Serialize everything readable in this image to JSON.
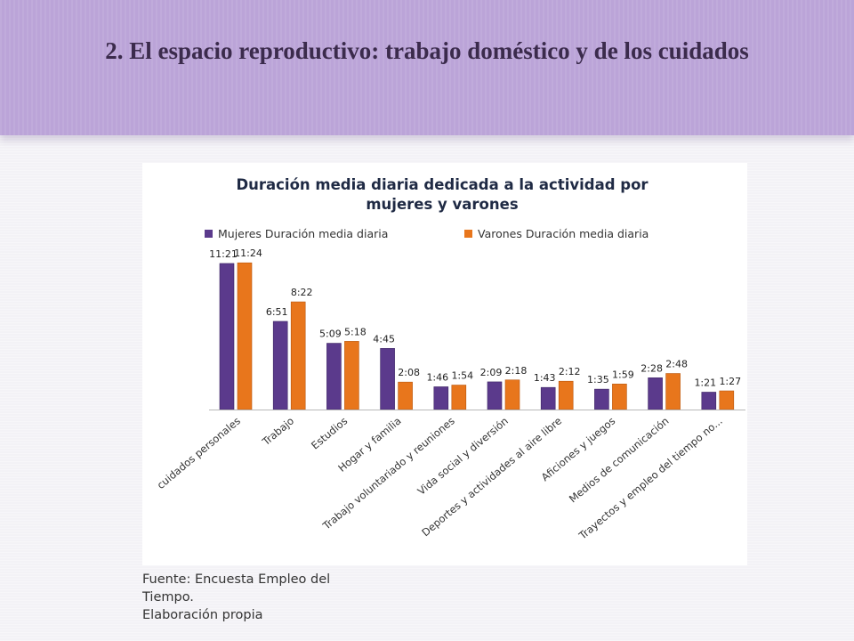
{
  "slide": {
    "title": "2. El espacio reproductivo: trabajo doméstico y de los cuidados"
  },
  "source": {
    "line1": "Fuente: Encuesta Empleo del",
    "line2": "Tiempo.",
    "line3": "Elaboración propia"
  },
  "colors": {
    "mujeres": "#5b3a8c",
    "varones": "#e8761c"
  },
  "chart_data": {
    "type": "bar",
    "title_lines": [
      "Duración media diaria dedicada a la actividad por",
      "mujeres y varones"
    ],
    "legend_position": "top",
    "grid": false,
    "value_unit": "minutes",
    "categories": [
      "cuidados personales",
      "Trabajo",
      "Estudios",
      "Hogar y familia",
      "Trabajo voluntariado y reuniones",
      "Vida social y diversión",
      "Deportes y actividades al aire libre",
      "Aficiones y juegos",
      "Medios de comunicación",
      "Trayectos y empleo del tiempo no..."
    ],
    "series": [
      {
        "name": "Mujeres Duración media diaria",
        "labels": [
          "11:21",
          "6:51",
          "5:09",
          "4:45",
          "1:46",
          "2:09",
          "1:43",
          "1:35",
          "2:28",
          "1:21"
        ],
        "values": [
          681,
          411,
          309,
          285,
          106,
          129,
          103,
          95,
          148,
          81
        ]
      },
      {
        "name": "Varones Duración media diaria",
        "labels": [
          "11:24",
          "8:22",
          "5:18",
          "2:08",
          "1:54",
          "2:18",
          "2:12",
          "1:59",
          "2:48",
          "1:27"
        ],
        "values": [
          684,
          502,
          318,
          128,
          114,
          138,
          132,
          119,
          168,
          87
        ]
      }
    ],
    "ylim": [
      0,
      720
    ]
  }
}
